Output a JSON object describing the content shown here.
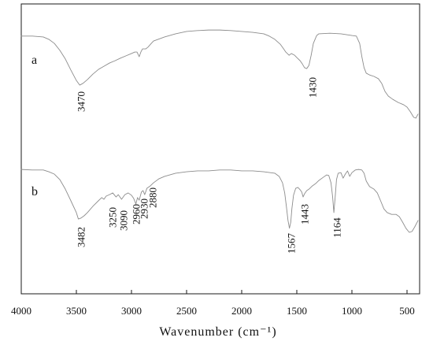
{
  "chart_data": {
    "type": "line",
    "xlabel": "Wavenumber (cm⁻¹)",
    "xlim": [
      4000,
      386
    ],
    "x_reversed": true,
    "ylim": [
      0,
      100
    ],
    "xticks": [
      4000,
      3500,
      3000,
      2500,
      2000,
      1500,
      1000,
      500
    ],
    "grid": false,
    "line_color": "#8c8c8c",
    "series": [
      {
        "name": "a",
        "peaks": [
          3470,
          1430
        ],
        "x": [
          4000,
          3900,
          3800,
          3750,
          3700,
          3650,
          3600,
          3550,
          3500,
          3470,
          3440,
          3400,
          3350,
          3300,
          3250,
          3200,
          3150,
          3100,
          3050,
          3000,
          2970,
          2950,
          2930,
          2915,
          2900,
          2870,
          2850,
          2820,
          2800,
          2700,
          2600,
          2500,
          2400,
          2300,
          2200,
          2100,
          2000,
          1900,
          1800,
          1750,
          1700,
          1650,
          1620,
          1600,
          1570,
          1550,
          1520,
          1500,
          1470,
          1450,
          1430,
          1410,
          1390,
          1370,
          1350,
          1320,
          1300,
          1200,
          1100,
          1000,
          960,
          930,
          910,
          890,
          870,
          840,
          800,
          760,
          730,
          700,
          670,
          630,
          580,
          530,
          500,
          470,
          440,
          420,
          400
        ],
        "y": [
          88.9,
          88.9,
          88.6,
          87.8,
          86.4,
          84.0,
          81.0,
          77.2,
          73.6,
          72.0,
          72.6,
          73.9,
          75.8,
          77.4,
          78.5,
          79.6,
          80.4,
          81.3,
          82.1,
          82.9,
          83.4,
          83.4,
          81.8,
          83.4,
          84.5,
          84.5,
          85.1,
          86.4,
          87.2,
          88.6,
          89.7,
          90.5,
          90.8,
          91.0,
          91.0,
          90.8,
          90.5,
          90.2,
          89.7,
          88.9,
          87.8,
          86.1,
          84.5,
          83.4,
          82.3,
          82.9,
          82.3,
          81.5,
          80.4,
          79.3,
          78.0,
          77.7,
          78.8,
          82.3,
          86.4,
          89.1,
          89.7,
          89.9,
          89.7,
          89.1,
          88.9,
          86.4,
          81.8,
          78.0,
          76.1,
          75.5,
          75.0,
          74.2,
          72.6,
          69.8,
          68.2,
          67.1,
          66.0,
          65.2,
          64.4,
          62.8,
          60.9,
          60.6,
          62.0
        ]
      },
      {
        "name": "b",
        "peaks": [
          3482,
          3250,
          3090,
          2960,
          2930,
          2880,
          1567,
          1443,
          1164
        ],
        "x": [
          4000,
          3900,
          3800,
          3750,
          3700,
          3650,
          3600,
          3550,
          3500,
          3482,
          3460,
          3430,
          3400,
          3350,
          3300,
          3270,
          3250,
          3230,
          3200,
          3170,
          3140,
          3120,
          3090,
          3060,
          3030,
          3000,
          2980,
          2960,
          2945,
          2930,
          2910,
          2895,
          2880,
          2860,
          2830,
          2800,
          2750,
          2700,
          2600,
          2500,
          2400,
          2300,
          2200,
          2100,
          2000,
          1900,
          1800,
          1700,
          1660,
          1630,
          1610,
          1595,
          1580,
          1567,
          1555,
          1545,
          1530,
          1510,
          1490,
          1470,
          1455,
          1443,
          1430,
          1410,
          1390,
          1360,
          1330,
          1300,
          1260,
          1230,
          1210,
          1190,
          1175,
          1164,
          1152,
          1140,
          1125,
          1100,
          1080,
          1060,
          1040,
          1020,
          1000,
          970,
          940,
          910,
          890,
          870,
          840,
          800,
          770,
          740,
          710,
          680,
          640,
          600,
          570,
          540,
          510,
          480,
          455,
          430,
          400
        ],
        "y": [
          42.9,
          42.7,
          42.7,
          42.1,
          41.3,
          39.4,
          36.1,
          32.1,
          28.0,
          25.8,
          26.1,
          26.9,
          28.0,
          30.2,
          32.1,
          33.2,
          32.6,
          33.7,
          34.2,
          34.8,
          33.4,
          34.2,
          32.6,
          34.2,
          34.8,
          34.0,
          32.9,
          31.0,
          33.2,
          32.3,
          35.1,
          35.6,
          34.2,
          36.4,
          37.2,
          38.3,
          39.7,
          40.5,
          41.6,
          42.1,
          42.4,
          42.4,
          42.7,
          42.7,
          42.4,
          42.4,
          42.1,
          41.6,
          40.5,
          38.3,
          34.8,
          30.2,
          25.3,
          22.6,
          24.7,
          29.3,
          34.0,
          36.4,
          36.7,
          35.9,
          35.1,
          33.4,
          34.5,
          35.6,
          36.1,
          37.2,
          38.0,
          39.1,
          40.2,
          41.0,
          40.8,
          38.3,
          33.4,
          28.0,
          33.4,
          39.4,
          41.6,
          41.8,
          39.9,
          41.3,
          42.4,
          40.5,
          41.8,
          42.7,
          42.9,
          42.7,
          41.6,
          38.9,
          37.0,
          36.1,
          34.8,
          32.1,
          29.3,
          28.0,
          27.4,
          27.4,
          26.6,
          24.7,
          22.6,
          21.2,
          21.5,
          23.1,
          25.3
        ]
      }
    ]
  }
}
